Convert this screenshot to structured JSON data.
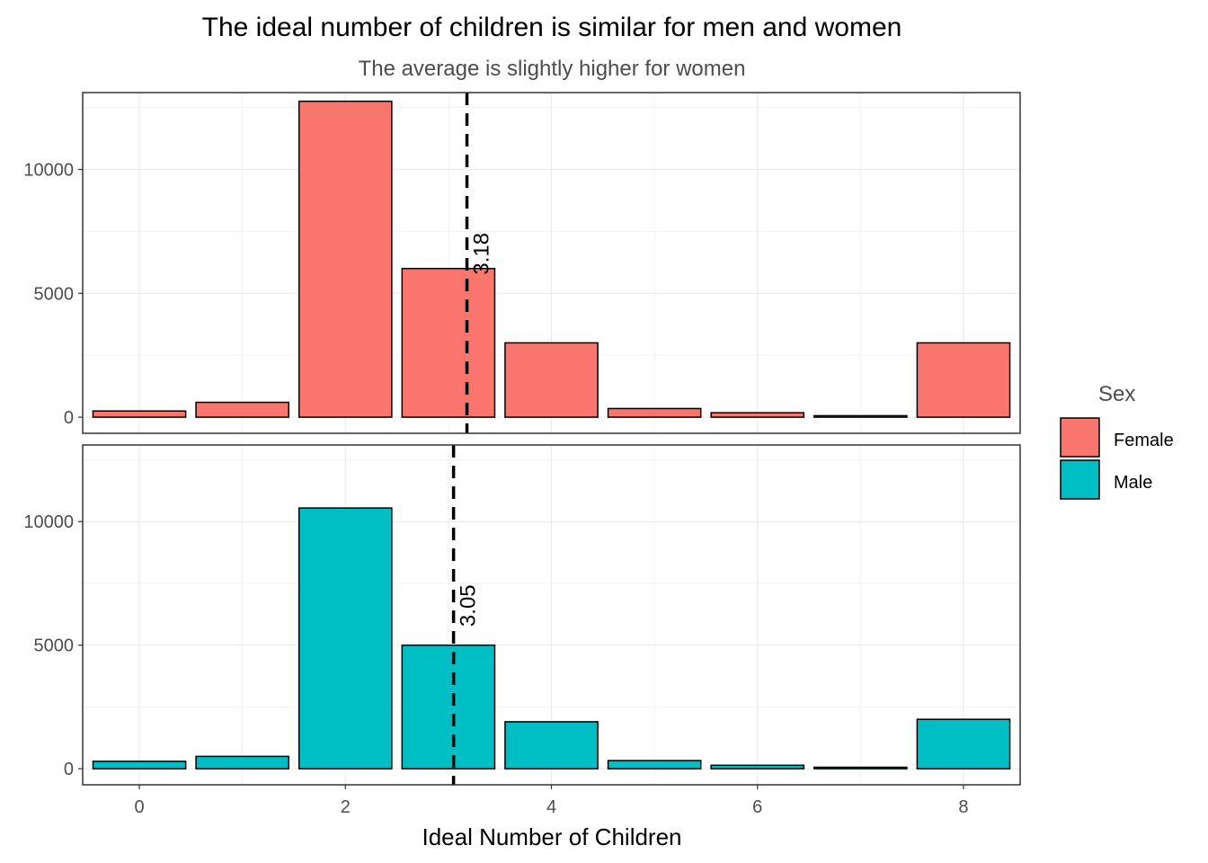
{
  "chart_data": {
    "type": "bar",
    "title": "The ideal number of children is similar for men and women",
    "subtitle": "The average is slightly higher for women",
    "xlabel": "Ideal Number of Children",
    "ylabel": "",
    "x_ticks": [
      "0",
      "2",
      "4",
      "6",
      "8"
    ],
    "x_tick_values": [
      0,
      2,
      4,
      6,
      8
    ],
    "y_ticks": [
      "0",
      "5000",
      "10000"
    ],
    "y_tick_values": [
      0,
      5000,
      10000
    ],
    "xlim": [
      -0.55,
      8.55
    ],
    "ylim": [
      -650,
      13100
    ],
    "categories": [
      0,
      1,
      2,
      3,
      4,
      5,
      6,
      7,
      8
    ],
    "facets": "stacked vertically, shared x-axis",
    "grid": true,
    "legend": {
      "title": "Sex",
      "position": "right",
      "entries": [
        {
          "name": "Female",
          "color": "#F8766D"
        },
        {
          "name": "Male",
          "color": "#00BFC4"
        }
      ]
    },
    "series": [
      {
        "name": "Female",
        "color": "#F8766D",
        "values": [
          250,
          600,
          12750,
          6000,
          3000,
          350,
          180,
          60,
          3000
        ],
        "mean": 3.18,
        "mean_label": "3.18"
      },
      {
        "name": "Male",
        "color": "#00BFC4",
        "values": [
          300,
          500,
          10550,
          5000,
          1900,
          330,
          140,
          60,
          2000
        ],
        "mean": 3.05,
        "mean_label": "3.05"
      }
    ]
  }
}
